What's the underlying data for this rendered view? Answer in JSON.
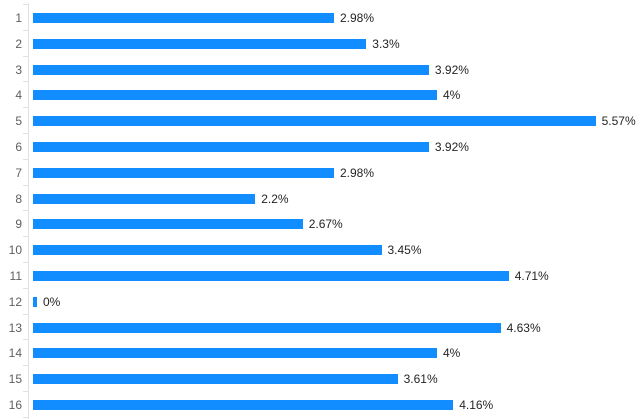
{
  "chart_data": {
    "type": "bar",
    "orientation": "horizontal",
    "title": "",
    "xlabel": "",
    "ylabel": "",
    "categories": [
      "1",
      "2",
      "3",
      "4",
      "5",
      "6",
      "7",
      "8",
      "9",
      "10",
      "11",
      "12",
      "13",
      "14",
      "15",
      "16"
    ],
    "values": [
      2.98,
      3.3,
      3.92,
      4,
      5.57,
      3.92,
      2.98,
      2.2,
      2.67,
      3.45,
      4.71,
      0,
      4.63,
      4,
      3.61,
      4.16
    ],
    "data_labels": [
      "2.98%",
      "3.3%",
      "3.92%",
      "4%",
      "5.57%",
      "3.92%",
      "2.98%",
      "2.2%",
      "2.67%",
      "3.45%",
      "4.71%",
      "0%",
      "4.63%",
      "4%",
      "3.61%",
      "4.16%"
    ],
    "xlim": [
      0,
      6
    ],
    "grid": false,
    "legend": false,
    "colors": {
      "bar": "#118dff",
      "value_label": "#252423",
      "category_label": "#605e5c",
      "axis": "#e1e1e1"
    }
  }
}
